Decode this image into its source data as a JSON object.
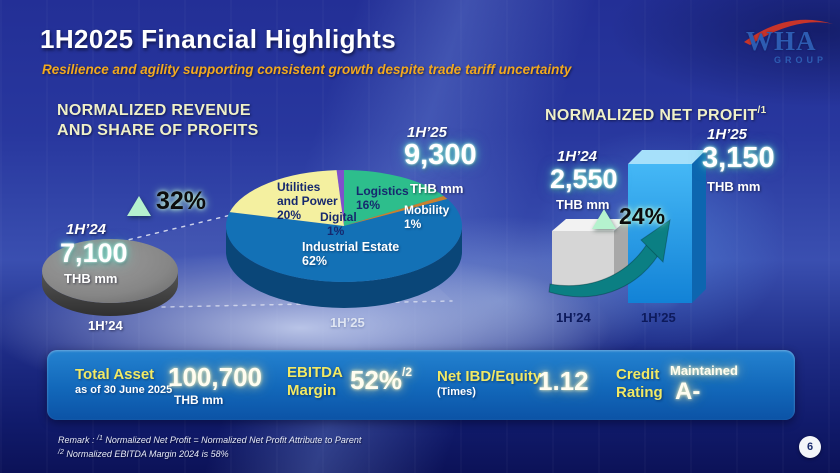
{
  "header": {
    "title": "1H2025 Financial Highlights",
    "subtitle": "Resilience and agility supporting consistent growth despite trade tariff uncertainty"
  },
  "logo": {
    "brand": "WHA",
    "sub": "GROUP"
  },
  "revenue": {
    "heading1": "NORMALIZED REVENUE",
    "heading2": "AND SHARE OF PROFITS",
    "growth": "32%",
    "prev_period": "1H’24",
    "prev_value": "7,100",
    "prev_unit": "THB mm",
    "prev_axis": "1H’24",
    "curr_period": "1H’25",
    "curr_value": "9,300",
    "curr_unit": "THB mm",
    "curr_axis": "1H’25",
    "labels": {
      "utilities_l1": "Utilities",
      "utilities_l2": "and Power",
      "utilities_pct": "20%",
      "logistics_name": "Logistics",
      "logistics_pct": "16%",
      "digital_name": "Digital",
      "digital_pct": "1%",
      "mobility_name": "Mobility",
      "mobility_pct": "1%",
      "industrial_name": "Industrial Estate",
      "industrial_pct": "62%"
    }
  },
  "net_profit": {
    "heading": "NORMALIZED NET PROFIT",
    "heading_sup": "/1",
    "growth": "24%",
    "prev_period": "1H’24",
    "prev_value": "2,550",
    "prev_unit": "THB mm",
    "prev_axis": "1H’24",
    "curr_period": "1H’25",
    "curr_value": "3,150",
    "curr_unit": "THB mm",
    "curr_axis": "1H’25"
  },
  "stats": {
    "total_asset_label": "Total Asset",
    "total_asset_sub": "as of 30 June 2025",
    "total_asset_value": "100,700",
    "total_asset_unit": "THB mm",
    "ebitda_l1": "EBITDA",
    "ebitda_l2": "Margin",
    "ebitda_value": "52%",
    "ebitda_sup": "/2",
    "ibd_label": "Net IBD/Equity",
    "ibd_sub": "(Times)",
    "ibd_value": "1.12",
    "credit_l1": "Credit",
    "credit_l2": "Rating",
    "credit_maintained": "Maintained",
    "credit_value": "A-"
  },
  "remark": {
    "prefix": "Remark : ",
    "sup1": "/1",
    "line1": " Normalized Net Profit = Normalized Net Profit Attribute to Parent",
    "sup2": "/2",
    "line2": " Normalized EBITDA Margin 2024 is 58%"
  },
  "page_number": "6",
  "chart_data": [
    {
      "type": "pie",
      "title": "Normalized Revenue and Share of Profits 1H'25",
      "total_prev": {
        "period": "1H'24",
        "value": 7100,
        "unit": "THB mm"
      },
      "total_curr": {
        "period": "1H'25",
        "value": 9300,
        "unit": "THB mm"
      },
      "growth_pct": 32,
      "start_angle_deg": -3.6,
      "depth_color": "#0a4678",
      "segments": [
        {
          "label": "Digital",
          "pct": 1,
          "color": "#8050cc"
        },
        {
          "label": "Logistics",
          "pct": 16,
          "color": "#2dbe8c"
        },
        {
          "label": "Mobility",
          "pct": 1,
          "color": "#c8822f"
        },
        {
          "label": "Industrial Estate",
          "pct": 62,
          "color": "#1371b6"
        },
        {
          "label": "Utilities and Power",
          "pct": 20,
          "color": "#f4f0a0"
        }
      ]
    },
    {
      "type": "bar",
      "title": "Normalized Net Profit",
      "categories": [
        "1H'24",
        "1H'25"
      ],
      "values": [
        2550,
        3150
      ],
      "unit": "THB mm",
      "growth_pct": 24,
      "colors": {
        "prev": {
          "front": "#d6d6d6",
          "top": "#f2f2f2",
          "side": "#a8a8a8"
        },
        "curr": {
          "front_top": "#45b8f6",
          "front_bottom": "#1282d6",
          "top": "#a6e0fa",
          "side": "#0d66b0"
        },
        "arrow": "#0b7f83"
      }
    }
  ]
}
